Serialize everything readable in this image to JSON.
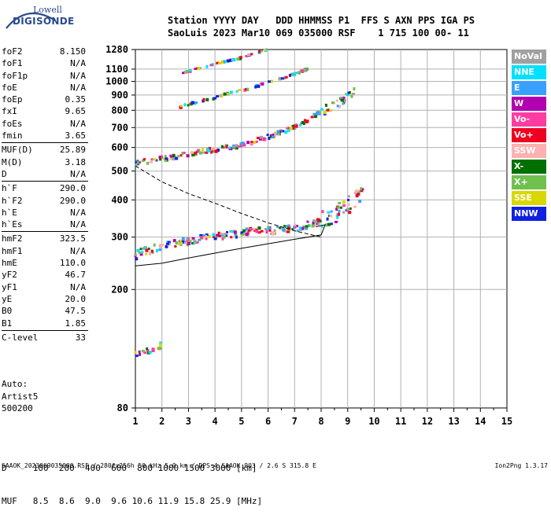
{
  "logo": {
    "line1": "Lowell",
    "line2": "DIGISONDE"
  },
  "header": {
    "line1": "Station YYYY DAY   DDD HHMMSS P1  FFS S AXN PPS IGA PS",
    "line2": "SaoLuis 2023 Mar10 069 035000 RSF    1 715 100 00- 11"
  },
  "params_groups": [
    [
      {
        "name": "foF2",
        "value": "8.150"
      },
      {
        "name": "foF1",
        "value": "N/A"
      },
      {
        "name": "foF1p",
        "value": "N/A"
      },
      {
        "name": "foE",
        "value": "N/A"
      },
      {
        "name": "foEp",
        "value": "0.35"
      },
      {
        "name": "fxI",
        "value": "9.65"
      },
      {
        "name": "foEs",
        "value": "N/A"
      },
      {
        "name": "fmin",
        "value": "3.65"
      }
    ],
    [
      {
        "name": "MUF(D)",
        "value": "25.89"
      },
      {
        "name": "M(D)",
        "value": "3.18"
      },
      {
        "name": "D",
        "value": "N/A"
      }
    ],
    [
      {
        "name": "h`F",
        "value": "290.0"
      },
      {
        "name": "h`F2",
        "value": "290.0"
      },
      {
        "name": "h`E",
        "value": "N/A"
      },
      {
        "name": "h`Es",
        "value": "N/A"
      }
    ],
    [
      {
        "name": "hmF2",
        "value": "323.5"
      },
      {
        "name": "hmF1",
        "value": "N/A"
      },
      {
        "name": "hmE",
        "value": "110.0"
      },
      {
        "name": "yF2",
        "value": "46.7"
      },
      {
        "name": "yF1",
        "value": "N/A"
      },
      {
        "name": "yE",
        "value": "20.0"
      },
      {
        "name": "B0",
        "value": "47.5"
      },
      {
        "name": "B1",
        "value": "1.85"
      }
    ],
    [
      {
        "name": "C-level",
        "value": "33"
      }
    ]
  ],
  "artist": {
    "line1": "Auto:",
    "line2": "Artist5",
    "line3": "500200"
  },
  "legend": [
    {
      "label": "NoVal",
      "color": "#a0a0a0"
    },
    {
      "label": "NNE",
      "color": "#00e0ff"
    },
    {
      "label": "E",
      "color": "#3aa0ff"
    },
    {
      "label": "W",
      "color": "#b000b0"
    },
    {
      "label": "Vo-",
      "color": "#ff3ca0"
    },
    {
      "label": "Vo+",
      "color": "#ee0020"
    },
    {
      "label": "SSW",
      "color": "#ffb0b0"
    },
    {
      "label": "X-",
      "color": "#007000"
    },
    {
      "label": "X+",
      "color": "#70c050"
    },
    {
      "label": "SSE",
      "color": "#d8d800"
    },
    {
      "label": "NNW",
      "color": "#1020e0"
    }
  ],
  "muf_table": {
    "line1": "D     100  200  400  600  800 1000 1500 3000 [km]",
    "line2": "MUF   8.5  8.6  9.0  9.6 10.6 11.9 15.8 25.9 [MHz]"
  },
  "footer": {
    "text": "SAAOK_2023069035000.RSF / 280fx256h 50 kHz 5.0 km / DPS-4 SAAOK 903 / 2.6 S 315.8 E",
    "version": "Ion2Png 1.3.17"
  },
  "chart_data": {
    "type": "scatter",
    "title": "",
    "xlabel": "",
    "ylabel": "",
    "xlim": [
      1,
      15
    ],
    "ylim": [
      80,
      1280
    ],
    "x_ticks": [
      1,
      2,
      3,
      4,
      5,
      6,
      7,
      8,
      9,
      10,
      11,
      12,
      13,
      14,
      15
    ],
    "y_ticks": [
      80,
      200,
      300,
      400,
      500,
      600,
      700,
      800,
      900,
      1000,
      1100,
      1280
    ],
    "y_scale": "log",
    "grid": true,
    "series": [
      {
        "x": [
          1.0,
          1.5,
          2.0,
          3.0,
          4.0,
          5.0,
          6.0,
          7.0,
          7.5,
          8.0,
          8.5,
          9.0,
          9.3,
          9.6
        ],
        "y": [
          260,
          270,
          280,
          290,
          300,
          310,
          315,
          320,
          330,
          340,
          360,
          380,
          400,
          420
        ]
      },
      {
        "x": [
          1.0,
          2.0,
          3.0,
          4.0,
          5.0,
          6.0,
          7.0,
          7.5,
          8.0,
          8.5,
          9.0,
          9.3
        ],
        "y": [
          530,
          550,
          570,
          590,
          610,
          650,
          700,
          740,
          790,
          830,
          880,
          950
        ]
      },
      {
        "x": [
          2.7,
          3.5,
          4.0,
          4.5,
          5.0,
          5.5,
          6.0,
          6.5,
          7.0,
          7.5
        ],
        "y": [
          820,
          860,
          880,
          910,
          930,
          960,
          990,
          1020,
          1060,
          1100
        ]
      },
      {
        "x": [
          2.6,
          3.0,
          3.5,
          4.0,
          4.5,
          5.0,
          5.5,
          6.0
        ],
        "y": [
          1050,
          1080,
          1110,
          1140,
          1170,
          1200,
          1240,
          1280
        ]
      },
      {
        "x": [
          1.0,
          1.5,
          2.0
        ],
        "y": [
          120,
          125,
          130
        ]
      }
    ],
    "profile_curves": [
      {
        "style": "dashed",
        "x": [
          1.0,
          2.0,
          3.0,
          4.0,
          5.0,
          6.0,
          7.0,
          8.0
        ],
        "y": [
          520,
          460,
          420,
          390,
          360,
          335,
          315,
          300
        ]
      },
      {
        "style": "solid",
        "x": [
          1.0,
          2.0,
          3.0,
          4.0,
          5.0,
          6.0,
          7.0,
          8.0,
          8.15,
          7.8
        ],
        "y": [
          240,
          245,
          255,
          265,
          275,
          285,
          295,
          305,
          330,
          325
        ]
      }
    ]
  }
}
